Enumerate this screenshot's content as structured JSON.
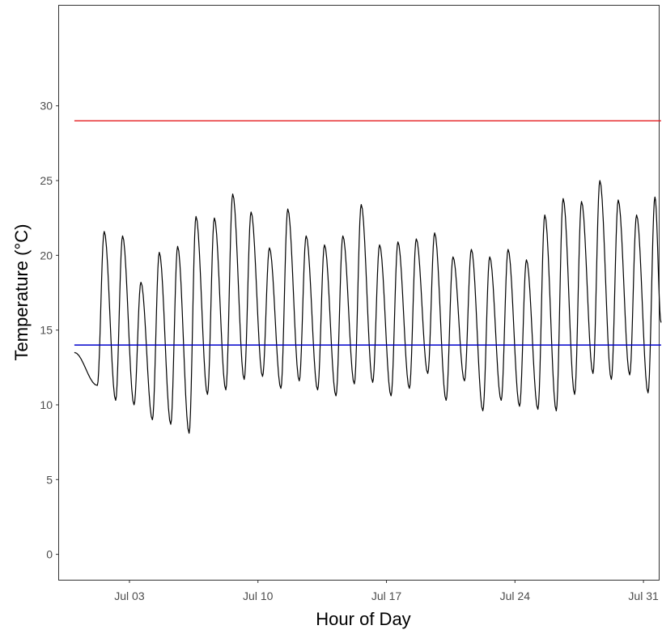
{
  "chart_data": {
    "type": "line",
    "xlabel": "Hour of Day",
    "ylabel": "Temperature (°C)",
    "x_range": [
      "2023-06-29T04:00",
      "2023-07-31T20:00"
    ],
    "ylim": [
      -1.7,
      36.7
    ],
    "x_ticks": [
      {
        "date": "2023-07-03",
        "label": "Jul 03"
      },
      {
        "date": "2023-07-10",
        "label": "Jul 10"
      },
      {
        "date": "2023-07-17",
        "label": "Jul 17"
      },
      {
        "date": "2023-07-24",
        "label": "Jul 24"
      },
      {
        "date": "2023-07-31",
        "label": "Jul 31"
      }
    ],
    "y_ticks": [
      0,
      5,
      10,
      15,
      20,
      25,
      30
    ],
    "grid": false,
    "series": [
      {
        "color": "#000000",
        "daily": [
          {
            "date": "2023-07-01",
            "min": 11.3,
            "max": 21.6
          },
          {
            "date": "2023-07-02",
            "min": 10.3,
            "max": 21.3
          },
          {
            "date": "2023-07-03",
            "min": 10.0,
            "max": 18.2
          },
          {
            "date": "2023-07-04",
            "min": 9.0,
            "max": 20.2
          },
          {
            "date": "2023-07-05",
            "min": 8.7,
            "max": 20.6
          },
          {
            "date": "2023-07-06",
            "min": 8.1,
            "max": 22.6
          },
          {
            "date": "2023-07-07",
            "min": 10.7,
            "max": 22.5
          },
          {
            "date": "2023-07-08",
            "min": 11.0,
            "max": 24.1
          },
          {
            "date": "2023-07-09",
            "min": 11.7,
            "max": 22.9
          },
          {
            "date": "2023-07-10",
            "min": 11.9,
            "max": 20.5
          },
          {
            "date": "2023-07-11",
            "min": 11.1,
            "max": 23.1
          },
          {
            "date": "2023-07-12",
            "min": 11.6,
            "max": 21.3
          },
          {
            "date": "2023-07-13",
            "min": 11.0,
            "max": 20.7
          },
          {
            "date": "2023-07-14",
            "min": 10.6,
            "max": 21.3
          },
          {
            "date": "2023-07-15",
            "min": 11.4,
            "max": 23.4
          },
          {
            "date": "2023-07-16",
            "min": 11.5,
            "max": 20.7
          },
          {
            "date": "2023-07-17",
            "min": 10.6,
            "max": 20.9
          },
          {
            "date": "2023-07-18",
            "min": 11.1,
            "max": 21.1
          },
          {
            "date": "2023-07-19",
            "min": 12.1,
            "max": 21.5
          },
          {
            "date": "2023-07-20",
            "min": 10.3,
            "max": 19.9
          },
          {
            "date": "2023-07-21",
            "min": 11.6,
            "max": 20.4
          },
          {
            "date": "2023-07-22",
            "min": 9.6,
            "max": 19.9
          },
          {
            "date": "2023-07-23",
            "min": 10.3,
            "max": 20.4
          },
          {
            "date": "2023-07-24",
            "min": 9.9,
            "max": 19.7
          },
          {
            "date": "2023-07-25",
            "min": 9.7,
            "max": 22.7
          },
          {
            "date": "2023-07-26",
            "min": 9.6,
            "max": 23.8
          },
          {
            "date": "2023-07-27",
            "min": 10.7,
            "max": 23.6
          },
          {
            "date": "2023-07-28",
            "min": 12.1,
            "max": 25.0
          },
          {
            "date": "2023-07-29",
            "min": 11.7,
            "max": 23.7
          },
          {
            "date": "2023-07-30",
            "min": 12.0,
            "max": 22.7
          },
          {
            "date": "2023-07-31",
            "min": 10.8,
            "max": 23.9
          }
        ],
        "start": {
          "time": "2023-06-30T00:00",
          "value": 13.5
        },
        "end": {
          "time": "2023-07-31T23:00",
          "value": 15.5
        }
      },
      {
        "color": "#e41a1c",
        "values": [
          29.0,
          29.0
        ],
        "x": [
          "2023-06-30T00:00",
          "2023-07-31T23:00"
        ]
      },
      {
        "color": "#0000cc",
        "values": [
          14.0,
          14.0
        ],
        "x": [
          "2023-06-30T00:00",
          "2023-07-31T23:00"
        ]
      }
    ]
  }
}
